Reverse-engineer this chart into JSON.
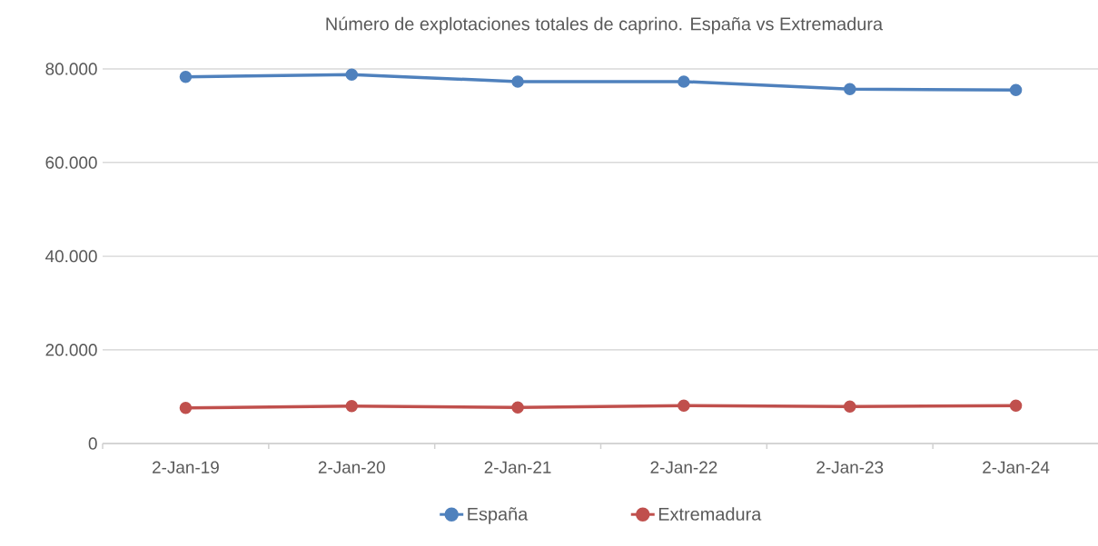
{
  "chart_data": {
    "type": "line",
    "title": "Número de explotaciones totales de caprino. España vs Extremadura",
    "categories": [
      "2-Jan-19",
      "2-Jan-20",
      "2-Jan-21",
      "2-Jan-22",
      "2-Jan-23",
      "2-Jan-24"
    ],
    "series": [
      {
        "name": "España",
        "color": "#4f81bd",
        "values": [
          78300,
          78800,
          77300,
          77300,
          75700,
          75500
        ]
      },
      {
        "name": "Extremadura",
        "color": "#c0504d",
        "values": [
          7600,
          8000,
          7700,
          8100,
          7900,
          8100
        ]
      }
    ],
    "ylim": [
      0,
      80000
    ],
    "yticks": [
      0,
      {
        "value": 20000,
        "label": "20.000"
      },
      {
        "value": 40000,
        "label": "40.000"
      },
      {
        "value": 60000,
        "label": "60.000"
      },
      {
        "value": 80000,
        "label": "80.000"
      }
    ],
    "grid": "y",
    "legend": "bottom",
    "marker": "circle",
    "line_style": "solid"
  }
}
